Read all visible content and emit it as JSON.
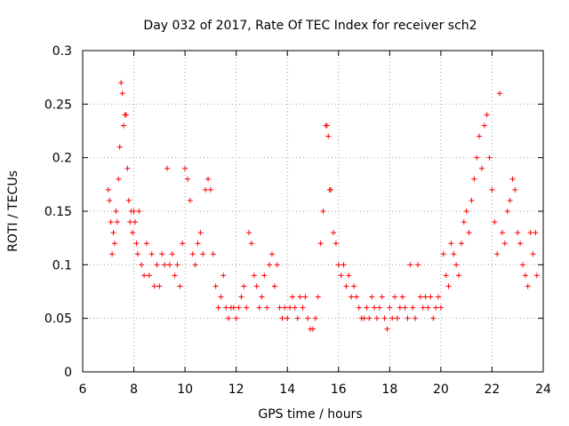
{
  "chart_data": {
    "type": "scatter",
    "title": "Day 032 of 2017, Rate Of TEC Index for receiver sch2",
    "xlabel": "GPS time / hours",
    "ylabel": "ROTI / TECUs",
    "xlim": [
      6,
      24
    ],
    "ylim": [
      0,
      0.3
    ],
    "grid": true,
    "marker": "plus",
    "color": "#ff0000",
    "xticks": [
      6,
      8,
      10,
      12,
      14,
      16,
      18,
      20,
      22,
      24
    ],
    "xtick_labels": [
      "6",
      "8",
      "10",
      "12",
      "14",
      "16",
      "18",
      "20",
      "22",
      "24"
    ],
    "yticks": [
      0,
      0.05,
      0.1,
      0.15,
      0.2,
      0.25,
      0.3
    ],
    "ytick_labels": [
      "0",
      "0.05",
      "0.1",
      "0.15",
      "0.2",
      "0.25",
      "0.3"
    ],
    "series": [
      {
        "name": "sch2 ROTI",
        "x": [
          7.0,
          7.05,
          7.1,
          7.15,
          7.2,
          7.25,
          7.3,
          7.35,
          7.4,
          7.45,
          7.5,
          7.55,
          7.6,
          7.65,
          7.7,
          7.75,
          7.8,
          7.85,
          7.9,
          7.95,
          8.0,
          8.05,
          8.1,
          8.15,
          8.2,
          8.3,
          8.4,
          8.5,
          8.6,
          8.7,
          8.8,
          8.9,
          9.0,
          9.1,
          9.2,
          9.3,
          9.4,
          9.5,
          9.6,
          9.7,
          9.8,
          9.9,
          10.0,
          10.1,
          10.2,
          10.3,
          10.4,
          10.5,
          10.6,
          10.7,
          10.8,
          10.9,
          11.0,
          11.1,
          11.2,
          11.3,
          11.4,
          11.5,
          11.6,
          11.7,
          11.8,
          11.9,
          12.0,
          12.1,
          12.2,
          12.3,
          12.4,
          12.5,
          12.6,
          12.7,
          12.8,
          12.9,
          13.0,
          13.1,
          13.2,
          13.3,
          13.4,
          13.5,
          13.6,
          13.7,
          13.8,
          13.9,
          14.0,
          14.1,
          14.2,
          14.3,
          14.4,
          14.5,
          14.6,
          14.7,
          14.8,
          14.9,
          15.0,
          15.1,
          15.2,
          15.3,
          15.4,
          15.5,
          15.55,
          15.6,
          15.65,
          15.7,
          15.8,
          15.9,
          16.0,
          16.1,
          16.2,
          16.3,
          16.4,
          16.5,
          16.6,
          16.7,
          16.8,
          16.9,
          17.0,
          17.1,
          17.2,
          17.3,
          17.4,
          17.5,
          17.6,
          17.7,
          17.8,
          17.9,
          18.0,
          18.1,
          18.2,
          18.3,
          18.4,
          18.5,
          18.6,
          18.7,
          18.8,
          18.9,
          19.0,
          19.1,
          19.2,
          19.3,
          19.4,
          19.5,
          19.6,
          19.7,
          19.8,
          19.9,
          20.0,
          20.1,
          20.2,
          20.3,
          20.4,
          20.5,
          20.6,
          20.7,
          20.8,
          20.9,
          21.0,
          21.1,
          21.2,
          21.3,
          21.4,
          21.5,
          21.6,
          21.7,
          21.8,
          21.9,
          22.0,
          22.1,
          22.2,
          22.3,
          22.4,
          22.5,
          22.6,
          22.7,
          22.8,
          22.9,
          23.0,
          23.1,
          23.2,
          23.3,
          23.4,
          23.5,
          23.6,
          23.7,
          23.75
        ],
        "y": [
          0.17,
          0.16,
          0.14,
          0.11,
          0.13,
          0.12,
          0.15,
          0.14,
          0.18,
          0.21,
          0.27,
          0.26,
          0.23,
          0.24,
          0.24,
          0.19,
          0.16,
          0.14,
          0.15,
          0.13,
          0.15,
          0.14,
          0.12,
          0.11,
          0.15,
          0.1,
          0.09,
          0.12,
          0.09,
          0.11,
          0.08,
          0.1,
          0.08,
          0.11,
          0.1,
          0.19,
          0.1,
          0.11,
          0.09,
          0.1,
          0.08,
          0.12,
          0.19,
          0.18,
          0.16,
          0.11,
          0.1,
          0.12,
          0.13,
          0.11,
          0.17,
          0.18,
          0.17,
          0.11,
          0.08,
          0.06,
          0.07,
          0.09,
          0.06,
          0.05,
          0.06,
          0.06,
          0.05,
          0.06,
          0.07,
          0.08,
          0.06,
          0.13,
          0.12,
          0.09,
          0.08,
          0.06,
          0.07,
          0.09,
          0.06,
          0.1,
          0.11,
          0.08,
          0.1,
          0.06,
          0.05,
          0.06,
          0.05,
          0.06,
          0.07,
          0.06,
          0.05,
          0.07,
          0.06,
          0.07,
          0.05,
          0.04,
          0.04,
          0.05,
          0.07,
          0.12,
          0.15,
          0.23,
          0.23,
          0.22,
          0.17,
          0.17,
          0.13,
          0.12,
          0.1,
          0.09,
          0.1,
          0.08,
          0.09,
          0.07,
          0.08,
          0.07,
          0.06,
          0.05,
          0.05,
          0.06,
          0.05,
          0.07,
          0.06,
          0.05,
          0.06,
          0.07,
          0.05,
          0.04,
          0.06,
          0.05,
          0.07,
          0.05,
          0.06,
          0.07,
          0.06,
          0.05,
          0.1,
          0.06,
          0.05,
          0.1,
          0.07,
          0.06,
          0.07,
          0.06,
          0.07,
          0.05,
          0.06,
          0.07,
          0.06,
          0.11,
          0.09,
          0.08,
          0.12,
          0.11,
          0.1,
          0.09,
          0.12,
          0.14,
          0.15,
          0.13,
          0.16,
          0.18,
          0.2,
          0.22,
          0.19,
          0.23,
          0.24,
          0.2,
          0.17,
          0.14,
          0.11,
          0.26,
          0.13,
          0.12,
          0.15,
          0.16,
          0.18,
          0.17,
          0.13,
          0.12,
          0.1,
          0.09,
          0.08,
          0.13,
          0.11,
          0.13,
          0.09
        ]
      }
    ]
  }
}
